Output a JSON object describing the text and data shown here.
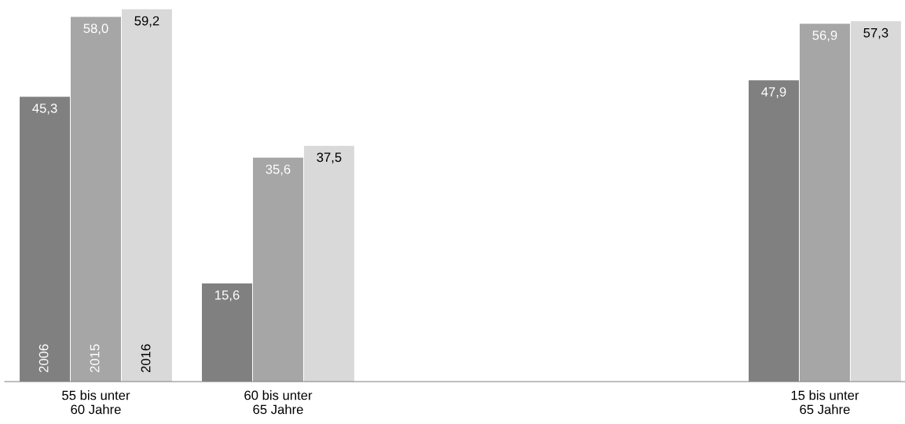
{
  "chart_data": {
    "type": "bar",
    "categories": [
      "55 bis unter\n60 Jahre",
      "60 bis unter\n65 Jahre",
      null,
      null,
      "15 bis unter\n65 Jahre"
    ],
    "series": [
      {
        "name": "2006",
        "color": "#808080",
        "values": [
          45.3,
          15.6,
          null,
          null,
          47.9
        ],
        "value_labels": [
          "45,3",
          "15,6",
          null,
          null,
          "47,9"
        ]
      },
      {
        "name": "2015",
        "color": "#a6a6a6",
        "values": [
          58.0,
          35.6,
          null,
          null,
          56.9
        ],
        "value_labels": [
          "58,0",
          "35,6",
          null,
          null,
          "56,9"
        ]
      },
      {
        "name": "2016",
        "color": "#d9d9d9",
        "values": [
          59.2,
          37.5,
          null,
          null,
          57.3
        ],
        "value_labels": [
          "59,2",
          "37,5",
          null,
          null,
          "57,3"
        ]
      }
    ],
    "grid": false,
    "legend": false
  }
}
